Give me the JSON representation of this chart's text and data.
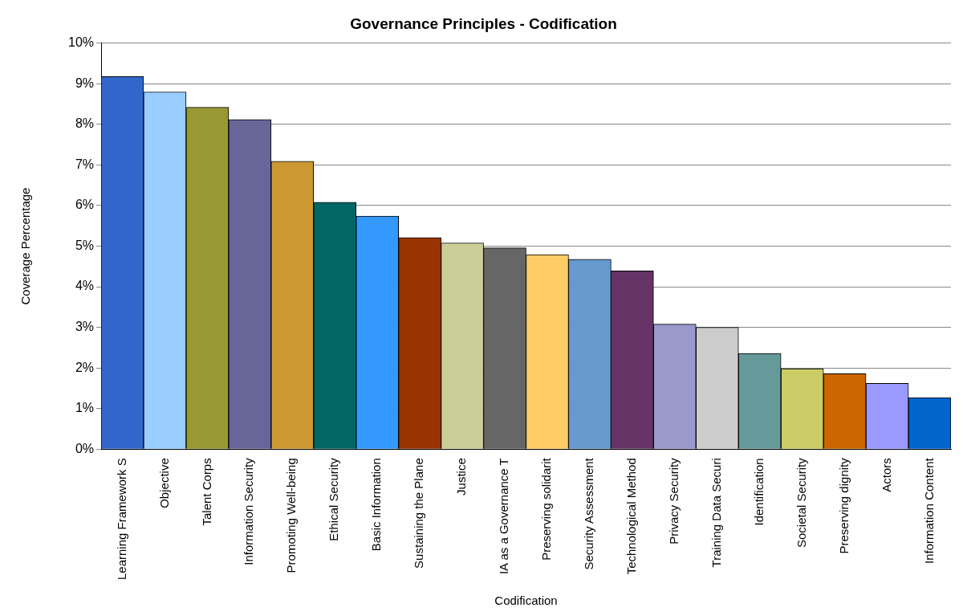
{
  "chart_data": {
    "type": "bar",
    "title": "Governance Principles - Codification",
    "xlabel": "Codification",
    "ylabel": "Coverage Percentage",
    "categories": [
      "Learning Framework S",
      "Objective",
      "Talent Corps",
      "Information Security",
      "Promoting Well-being",
      "Ethical Security",
      "Basic Information",
      "Sustaining the Plane",
      "Justice",
      "IA as a Governance T",
      "Preserving solidarit",
      "Security Assessment",
      "Technological Method",
      "Privacy Security",
      "Training Data Securi",
      "Identification",
      "Societal Security",
      "Preserving dignity",
      "Actors",
      "Information Content"
    ],
    "values": [
      9.18,
      8.8,
      8.42,
      8.12,
      7.09,
      6.08,
      5.74,
      5.21,
      5.08,
      4.96,
      4.79,
      4.68,
      4.39,
      3.08,
      3.0,
      2.36,
      1.98,
      1.86,
      1.62,
      1.27
    ],
    "colors": [
      "#3366cc",
      "#99ccff",
      "#999933",
      "#666699",
      "#cc9933",
      "#006666",
      "#3399ff",
      "#993300",
      "#cccc99",
      "#666666",
      "#ffcc66",
      "#6699cc",
      "#663366",
      "#9999cc",
      "#cccccc",
      "#669999",
      "#cccc66",
      "#cc6600",
      "#9999ff",
      "#0066cc"
    ],
    "ylim": [
      0,
      10
    ],
    "yticks": [
      {
        "value": 0,
        "label": "0%"
      },
      {
        "value": 1,
        "label": "1%"
      },
      {
        "value": 2,
        "label": "2%"
      },
      {
        "value": 3,
        "label": "3%"
      },
      {
        "value": 4,
        "label": "4%"
      },
      {
        "value": 5,
        "label": "5%"
      },
      {
        "value": 6,
        "label": "6%"
      },
      {
        "value": 7,
        "label": "7%"
      },
      {
        "value": 8,
        "label": "8%"
      },
      {
        "value": 9,
        "label": "9%"
      },
      {
        "value": 10,
        "label": "10%"
      }
    ],
    "grid": "y",
    "legend": false
  }
}
